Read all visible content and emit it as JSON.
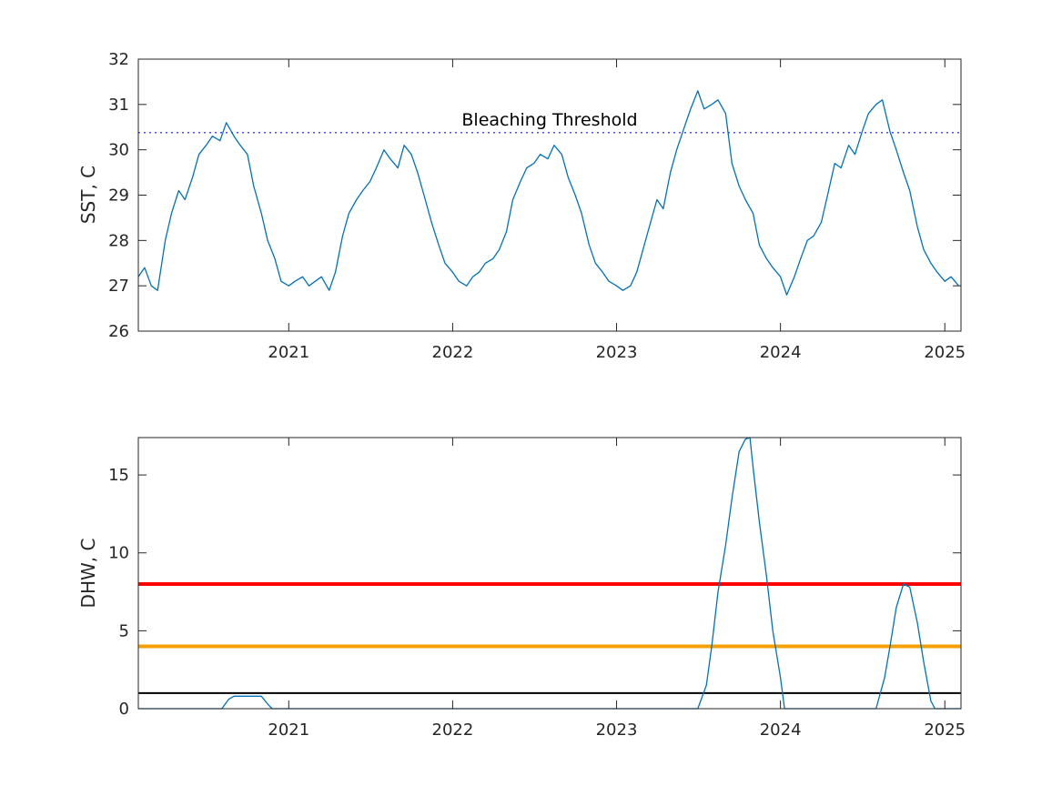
{
  "chart_data": [
    {
      "type": "line",
      "title": "",
      "xlabel": "",
      "ylabel": "SST, C",
      "xlim": [
        "2020-02-01",
        "2025-02-06"
      ],
      "ylim": [
        26,
        32
      ],
      "xticks": [
        "2021",
        "2022",
        "2023",
        "2024",
        "2025"
      ],
      "yticks": [
        26,
        27,
        28,
        29,
        30,
        31,
        32
      ],
      "grid": false,
      "series": [
        {
          "color": "#0072BD",
          "points": [
            [
              "2020-02-01",
              27.2
            ],
            [
              "2020-02-15",
              27.4
            ],
            [
              "2020-03-01",
              27.0
            ],
            [
              "2020-03-15",
              26.9
            ],
            [
              "2020-04-01",
              28.0
            ],
            [
              "2020-04-15",
              28.6
            ],
            [
              "2020-05-01",
              29.1
            ],
            [
              "2020-05-15",
              28.9
            ],
            [
              "2020-06-01",
              29.4
            ],
            [
              "2020-06-15",
              29.9
            ],
            [
              "2020-07-01",
              30.1
            ],
            [
              "2020-07-15",
              30.3
            ],
            [
              "2020-08-01",
              30.2
            ],
            [
              "2020-08-15",
              30.6
            ],
            [
              "2020-09-01",
              30.3
            ],
            [
              "2020-09-15",
              30.1
            ],
            [
              "2020-10-01",
              29.9
            ],
            [
              "2020-10-15",
              29.2
            ],
            [
              "2020-11-01",
              28.6
            ],
            [
              "2020-11-15",
              28.0
            ],
            [
              "2020-12-01",
              27.6
            ],
            [
              "2020-12-15",
              27.1
            ],
            [
              "2021-01-01",
              27.0
            ],
            [
              "2021-01-15",
              27.1
            ],
            [
              "2021-02-01",
              27.2
            ],
            [
              "2021-02-15",
              27.0
            ],
            [
              "2021-03-01",
              27.1
            ],
            [
              "2021-03-15",
              27.2
            ],
            [
              "2021-04-01",
              26.9
            ],
            [
              "2021-04-15",
              27.3
            ],
            [
              "2021-05-01",
              28.1
            ],
            [
              "2021-05-15",
              28.6
            ],
            [
              "2021-06-01",
              28.9
            ],
            [
              "2021-06-15",
              29.1
            ],
            [
              "2021-07-01",
              29.3
            ],
            [
              "2021-07-15",
              29.6
            ],
            [
              "2021-08-01",
              30.0
            ],
            [
              "2021-08-15",
              29.8
            ],
            [
              "2021-09-01",
              29.6
            ],
            [
              "2021-09-15",
              30.1
            ],
            [
              "2021-10-01",
              29.9
            ],
            [
              "2021-10-15",
              29.5
            ],
            [
              "2021-11-01",
              28.9
            ],
            [
              "2021-11-15",
              28.4
            ],
            [
              "2021-12-01",
              27.9
            ],
            [
              "2021-12-15",
              27.5
            ],
            [
              "2022-01-01",
              27.3
            ],
            [
              "2022-01-15",
              27.1
            ],
            [
              "2022-02-01",
              27.0
            ],
            [
              "2022-02-15",
              27.2
            ],
            [
              "2022-03-01",
              27.3
            ],
            [
              "2022-03-15",
              27.5
            ],
            [
              "2022-04-01",
              27.6
            ],
            [
              "2022-04-15",
              27.8
            ],
            [
              "2022-05-01",
              28.2
            ],
            [
              "2022-05-15",
              28.9
            ],
            [
              "2022-06-01",
              29.3
            ],
            [
              "2022-06-15",
              29.6
            ],
            [
              "2022-07-01",
              29.7
            ],
            [
              "2022-07-15",
              29.9
            ],
            [
              "2022-08-01",
              29.8
            ],
            [
              "2022-08-15",
              30.1
            ],
            [
              "2022-09-01",
              29.9
            ],
            [
              "2022-09-15",
              29.4
            ],
            [
              "2022-10-01",
              29.0
            ],
            [
              "2022-10-15",
              28.6
            ],
            [
              "2022-11-01",
              27.9
            ],
            [
              "2022-11-15",
              27.5
            ],
            [
              "2022-12-01",
              27.3
            ],
            [
              "2022-12-15",
              27.1
            ],
            [
              "2023-01-01",
              27.0
            ],
            [
              "2023-01-15",
              26.9
            ],
            [
              "2023-02-01",
              27.0
            ],
            [
              "2023-02-15",
              27.3
            ],
            [
              "2023-03-01",
              27.8
            ],
            [
              "2023-03-15",
              28.3
            ],
            [
              "2023-04-01",
              28.9
            ],
            [
              "2023-04-15",
              28.7
            ],
            [
              "2023-05-01",
              29.5
            ],
            [
              "2023-05-15",
              30.0
            ],
            [
              "2023-06-01",
              30.5
            ],
            [
              "2023-06-15",
              30.9
            ],
            [
              "2023-07-01",
              31.3
            ],
            [
              "2023-07-15",
              30.9
            ],
            [
              "2023-08-01",
              31.0
            ],
            [
              "2023-08-15",
              31.1
            ],
            [
              "2023-09-01",
              30.8
            ],
            [
              "2023-09-15",
              29.7
            ],
            [
              "2023-10-01",
              29.2
            ],
            [
              "2023-10-15",
              28.9
            ],
            [
              "2023-11-01",
              28.6
            ],
            [
              "2023-11-15",
              27.9
            ],
            [
              "2023-12-01",
              27.6
            ],
            [
              "2023-12-15",
              27.4
            ],
            [
              "2024-01-01",
              27.2
            ],
            [
              "2024-01-15",
              26.8
            ],
            [
              "2024-02-01",
              27.2
            ],
            [
              "2024-02-15",
              27.6
            ],
            [
              "2024-03-01",
              28.0
            ],
            [
              "2024-03-15",
              28.1
            ],
            [
              "2024-04-01",
              28.4
            ],
            [
              "2024-04-15",
              29.0
            ],
            [
              "2024-05-01",
              29.7
            ],
            [
              "2024-05-15",
              29.6
            ],
            [
              "2024-06-01",
              30.1
            ],
            [
              "2024-06-15",
              29.9
            ],
            [
              "2024-07-01",
              30.4
            ],
            [
              "2024-07-15",
              30.8
            ],
            [
              "2024-08-01",
              31.0
            ],
            [
              "2024-08-15",
              31.1
            ],
            [
              "2024-09-01",
              30.4
            ],
            [
              "2024-09-15",
              30.0
            ],
            [
              "2024-10-01",
              29.5
            ],
            [
              "2024-10-15",
              29.1
            ],
            [
              "2024-11-01",
              28.3
            ],
            [
              "2024-11-15",
              27.8
            ],
            [
              "2024-12-01",
              27.5
            ],
            [
              "2024-12-15",
              27.3
            ],
            [
              "2025-01-01",
              27.1
            ],
            [
              "2025-01-15",
              27.2
            ],
            [
              "2025-02-01",
              27.0
            ]
          ]
        }
      ],
      "reference_lines": [
        {
          "label": "Bleaching Threshold",
          "y": 30.38,
          "color": "#4D4DFF",
          "style": "dotted"
        }
      ]
    },
    {
      "type": "line",
      "title": "",
      "xlabel": "",
      "ylabel": "DHW, C",
      "xlim": [
        "2020-02-01",
        "2025-02-06"
      ],
      "ylim": [
        0,
        17.4
      ],
      "xticks": [
        "2021",
        "2022",
        "2023",
        "2024",
        "2025"
      ],
      "yticks": [
        0,
        5,
        10,
        15
      ],
      "grid": false,
      "series": [
        {
          "color": "#0072BD",
          "points": [
            [
              "2020-02-01",
              0
            ],
            [
              "2020-08-05",
              0
            ],
            [
              "2020-08-20",
              0.6
            ],
            [
              "2020-09-01",
              0.8
            ],
            [
              "2020-11-01",
              0.8
            ],
            [
              "2020-11-15",
              0.3
            ],
            [
              "2020-11-25",
              0
            ],
            [
              "2023-07-01",
              0
            ],
            [
              "2023-07-20",
              1.5
            ],
            [
              "2023-08-01",
              4.0
            ],
            [
              "2023-08-15",
              7.5
            ],
            [
              "2023-09-01",
              10.5
            ],
            [
              "2023-09-15",
              13.5
            ],
            [
              "2023-10-01",
              16.5
            ],
            [
              "2023-10-15",
              17.3
            ],
            [
              "2023-10-25",
              17.4
            ],
            [
              "2023-11-01",
              15.5
            ],
            [
              "2023-11-15",
              12.0
            ],
            [
              "2023-12-01",
              8.5
            ],
            [
              "2023-12-15",
              5.0
            ],
            [
              "2024-01-01",
              2.0
            ],
            [
              "2024-01-10",
              0
            ],
            [
              "2024-08-01",
              0
            ],
            [
              "2024-08-20",
              2.0
            ],
            [
              "2024-09-01",
              4.0
            ],
            [
              "2024-09-15",
              6.5
            ],
            [
              "2024-10-01",
              8.0
            ],
            [
              "2024-10-15",
              7.8
            ],
            [
              "2024-11-01",
              5.5
            ],
            [
              "2024-11-15",
              3.0
            ],
            [
              "2024-12-01",
              0.5
            ],
            [
              "2024-12-10",
              0
            ],
            [
              "2025-02-06",
              0
            ]
          ]
        }
      ],
      "reference_lines": [
        {
          "y": 8,
          "color": "#FF0000",
          "width": "thick"
        },
        {
          "y": 4,
          "color": "#F5A000",
          "width": "thick"
        },
        {
          "y": 1,
          "color": "#000000",
          "width": "thin"
        }
      ]
    }
  ]
}
